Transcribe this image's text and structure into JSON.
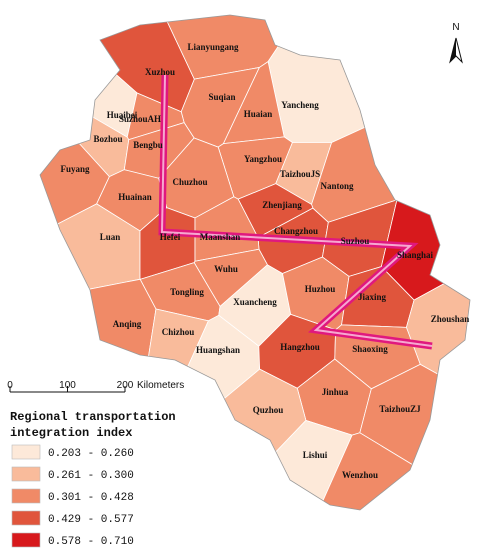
{
  "cities": [
    {
      "name": "Xuzhou",
      "color": "#e0553c"
    },
    {
      "name": "Lianyungang",
      "color": "#f08a67"
    },
    {
      "name": "Suqian",
      "color": "#f08a67"
    },
    {
      "name": "Yancheng",
      "color": "#fde9d9"
    },
    {
      "name": "Huaibei",
      "color": "#fde9d9"
    },
    {
      "name": "SuzhouAH",
      "color": "#f08a67"
    },
    {
      "name": "Huaian",
      "color": "#f08a67"
    },
    {
      "name": "Bozhou",
      "color": "#f9bb9b"
    },
    {
      "name": "Bengbu",
      "color": "#f08a67"
    },
    {
      "name": "Yangzhou",
      "color": "#f08a67"
    },
    {
      "name": "TaizhouJS",
      "color": "#f9bb9b"
    },
    {
      "name": "Fuyang",
      "color": "#f08a67"
    },
    {
      "name": "Chuzhou",
      "color": "#f08a67"
    },
    {
      "name": "Nantong",
      "color": "#f08a67"
    },
    {
      "name": "Huainan",
      "color": "#f08a67"
    },
    {
      "name": "Zhenjiang",
      "color": "#e0553c"
    },
    {
      "name": "Changzhou",
      "color": "#e0553c"
    },
    {
      "name": "Suzhou",
      "color": "#e0553c"
    },
    {
      "name": "Shanghai",
      "color": "#d7191c"
    },
    {
      "name": "Luan",
      "color": "#f9bb9b"
    },
    {
      "name": "Hefei",
      "color": "#e0553c"
    },
    {
      "name": "Maanshan",
      "color": "#f08a67"
    },
    {
      "name": "Wuhu",
      "color": "#f08a67"
    },
    {
      "name": "Tongling",
      "color": "#f08a67"
    },
    {
      "name": "Xuancheng",
      "color": "#fde9d9"
    },
    {
      "name": "Huzhou",
      "color": "#f08a67"
    },
    {
      "name": "Jiaxing",
      "color": "#e0553c"
    },
    {
      "name": "Zhoushan",
      "color": "#f9bb9b"
    },
    {
      "name": "Anqing",
      "color": "#f08a67"
    },
    {
      "name": "Chizhou",
      "color": "#f9bb9b"
    },
    {
      "name": "Huangshan",
      "color": "#fde9d9"
    },
    {
      "name": "Hangzhou",
      "color": "#e0553c"
    },
    {
      "name": "Shaoxing",
      "color": "#f08a67"
    },
    {
      "name": "Jinhua",
      "color": "#f08a67"
    },
    {
      "name": "Quzhou",
      "color": "#f9bb9b"
    },
    {
      "name": "TaizhouZJ",
      "color": "#f08a67"
    },
    {
      "name": "Lishui",
      "color": "#fde9d9"
    },
    {
      "name": "Wenzhou",
      "color": "#f08a67"
    }
  ],
  "legend": {
    "title": [
      "Regional transportation",
      "integration index"
    ],
    "classes": [
      {
        "label": "0.203 - 0.260",
        "color": "#fde9d9"
      },
      {
        "label": "0.261 - 0.300",
        "color": "#f9bb9b"
      },
      {
        "label": "0.301 - 0.428",
        "color": "#f08a67"
      },
      {
        "label": "0.429 - 0.577",
        "color": "#e0553c"
      },
      {
        "label": "0.578 - 0.710",
        "color": "#d7191c"
      }
    ]
  },
  "scale": {
    "ticks": [
      0,
      100,
      200
    ],
    "unit": "Kilometers"
  },
  "north": "N"
}
